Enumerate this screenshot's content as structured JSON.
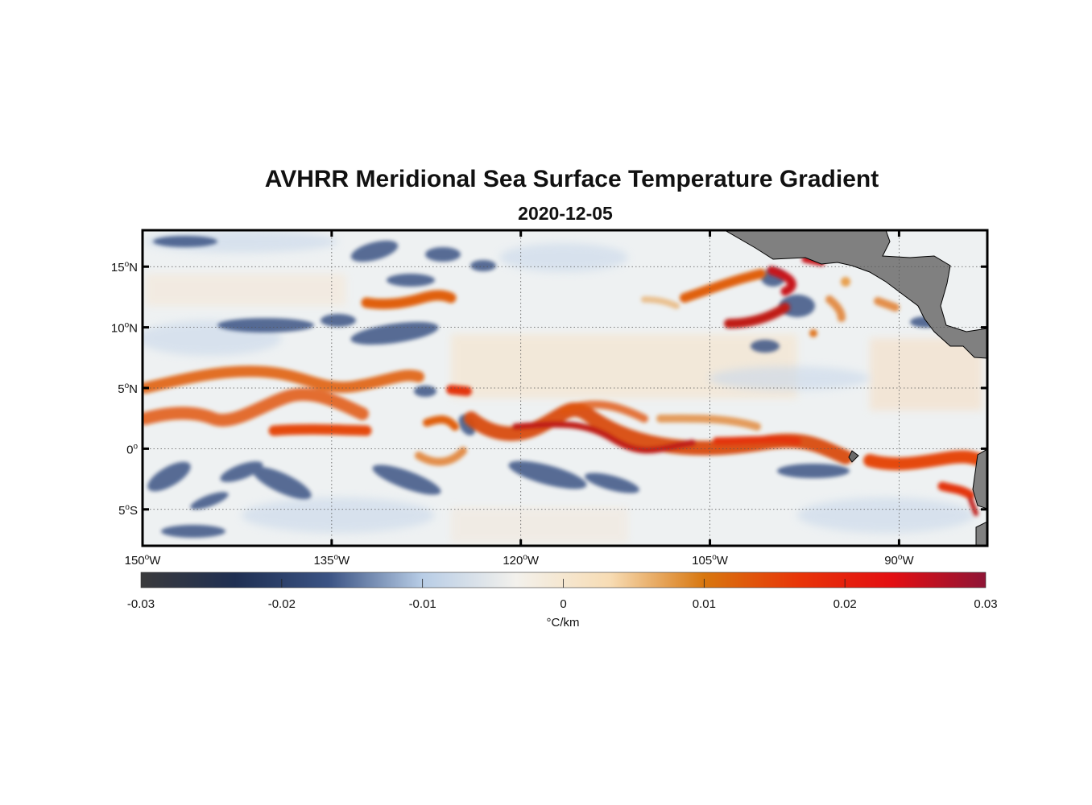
{
  "title": "AVHRR Meridional Sea Surface Temperature Gradient",
  "subtitle": "2020-12-05",
  "map": {
    "lon_range": [
      -150,
      -83
    ],
    "lat_range": [
      -8,
      18
    ],
    "lon_ticks": [
      {
        "value": -150,
        "num": "150",
        "hemi": "W"
      },
      {
        "value": -135,
        "num": "135",
        "hemi": "W"
      },
      {
        "value": -120,
        "num": "120",
        "hemi": "W"
      },
      {
        "value": -105,
        "num": "105",
        "hemi": "W"
      },
      {
        "value": -90,
        "num": "90",
        "hemi": "W"
      }
    ],
    "lat_ticks": [
      {
        "value": 15,
        "num": "15",
        "hemi": "N"
      },
      {
        "value": 10,
        "num": "10",
        "hemi": "N"
      },
      {
        "value": 5,
        "num": "5",
        "hemi": "N"
      },
      {
        "value": 0,
        "num": "0",
        "hemi": ""
      },
      {
        "value": -5,
        "num": "5",
        "hemi": "S"
      }
    ],
    "degree_symbol": "o",
    "land_color": "#808080",
    "frame_color": "#000000"
  },
  "colorbar": {
    "ticks": [
      "-0.03",
      "-0.02",
      "-0.01",
      "0",
      "0.01",
      "0.02",
      "0.03"
    ],
    "label": "°C/km",
    "colors": [
      "#3a3a3c",
      "#1f2f52",
      "#3b5384",
      "#b8cde6",
      "#f3f1ec",
      "#f7dcb4",
      "#d8770f",
      "#e83508",
      "#e30e12",
      "#8f1536"
    ]
  }
}
